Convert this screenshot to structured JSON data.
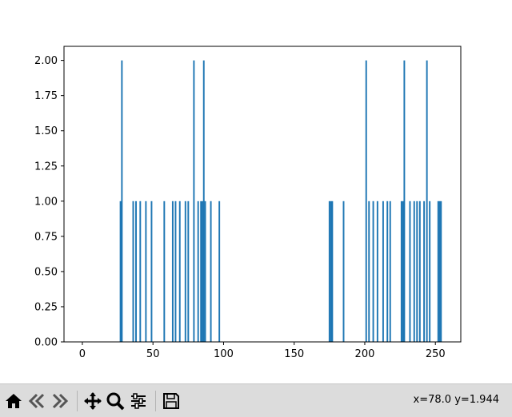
{
  "chart_data": {
    "type": "bar",
    "title": "",
    "xlabel": "",
    "ylabel": "",
    "xlim": [
      -13,
      268
    ],
    "ylim": [
      0,
      2.1
    ],
    "grid": false,
    "bar_color": "#1f77b4",
    "x_ticks": [
      0,
      50,
      100,
      150,
      200,
      250
    ],
    "x_tick_labels": [
      "0",
      "50",
      "100",
      "150",
      "200",
      "250"
    ],
    "y_ticks": [
      0,
      0.25,
      0.5,
      0.75,
      1.0,
      1.25,
      1.5,
      1.75,
      2.0
    ],
    "y_tick_labels": [
      "0.00",
      "0.25",
      "0.50",
      "0.75",
      "1.00",
      "1.25",
      "1.50",
      "1.75",
      "2.00"
    ],
    "x": [
      27,
      28,
      36,
      38,
      41,
      45,
      49,
      58,
      64,
      66,
      69,
      73,
      75,
      79,
      82,
      84,
      85,
      86,
      87,
      91,
      97,
      175,
      176,
      177,
      185,
      201,
      203,
      206,
      209,
      213,
      216,
      218,
      226,
      227,
      228,
      232,
      235,
      237,
      239,
      242,
      244,
      246,
      252,
      253,
      254
    ],
    "values": [
      1,
      2,
      1,
      1,
      1,
      1,
      1,
      1,
      1,
      1,
      1,
      1,
      1,
      2,
      1,
      1,
      1,
      2,
      1,
      1,
      1,
      1,
      1,
      1,
      1,
      2,
      1,
      1,
      1,
      1,
      1,
      1,
      1,
      1,
      2,
      1,
      1,
      1,
      1,
      1,
      2,
      1,
      1,
      1,
      1
    ]
  },
  "toolbar": {
    "buttons": [
      {
        "name": "home-icon",
        "label": "Home"
      },
      {
        "name": "back-icon",
        "label": "Back"
      },
      {
        "name": "forward-icon",
        "label": "Forward"
      },
      {
        "name": "pan-icon",
        "label": "Pan"
      },
      {
        "name": "zoom-icon",
        "label": "Zoom"
      },
      {
        "name": "subplots-icon",
        "label": "Configure subplots"
      },
      {
        "name": "save-icon",
        "label": "Save"
      }
    ],
    "coords": "x=78.0 y=1.944"
  }
}
